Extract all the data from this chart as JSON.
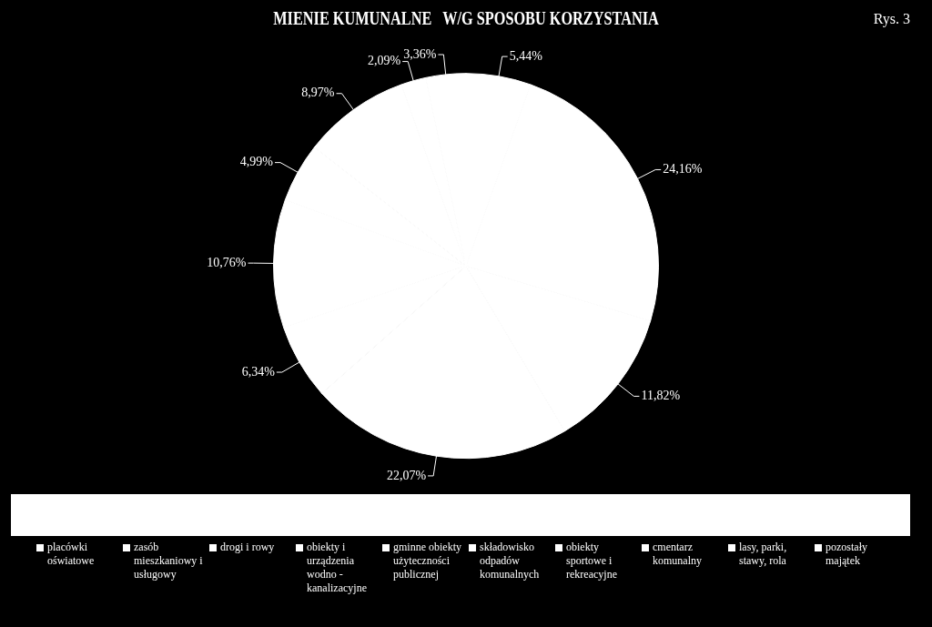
{
  "chart_data": {
    "type": "pie",
    "title": "MIENIE KUMUNALNE   W/G SPOSOBU KORZYSTANIA",
    "annotations": [
      "Rys. 3"
    ],
    "categories": [
      "placówki oświatowe",
      "zasób mieszkaniowy i usługowy",
      "drogi i rowy",
      "obiekty i urządzenia wodno - kanalizacyjne",
      "gminne obiekty użyteczności publicznej",
      "składowisko odpadów komunalnych",
      "obiekty sportowe i rekreacyjne",
      "cmentarz komunalny",
      "lasy, parki, stawy, rola",
      "pozostały majątek"
    ],
    "values": [
      5.44,
      24.16,
      11.82,
      22.07,
      6.34,
      10.76,
      4.99,
      8.97,
      2.09,
      3.36
    ],
    "value_labels": [
      "5,44%",
      "24,16%",
      "11,82%",
      "22,07%",
      "6,34%",
      "10,76%",
      "4,99%",
      "8,97%",
      "2,09%",
      "3,36%"
    ],
    "colors": [
      "#ffffff",
      "#ffffff",
      "#ffffff",
      "#ffffff",
      "#ffffff",
      "#ffffff",
      "#ffffff",
      "#ffffff",
      "#ffffff",
      "#ffffff"
    ],
    "legend": "bottom"
  }
}
